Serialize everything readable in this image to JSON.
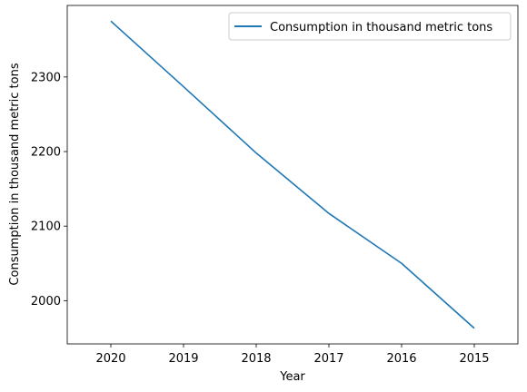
{
  "chart_data": {
    "type": "line",
    "x": [
      "2020",
      "2019",
      "2018",
      "2017",
      "2016",
      "2015"
    ],
    "series": [
      {
        "name": "Consumption in thousand metric tons",
        "values": [
          2375,
          2287,
          2198,
          2117,
          2050,
          1963
        ],
        "color": "#1f77b4"
      }
    ],
    "xlabel": "Year",
    "ylabel": "Consumption in thousand metric tons",
    "ylim": [
      1942,
      2396
    ],
    "yticks": [
      2000,
      2100,
      2200,
      2300
    ],
    "grid": false,
    "legend_position": "upper-right"
  }
}
